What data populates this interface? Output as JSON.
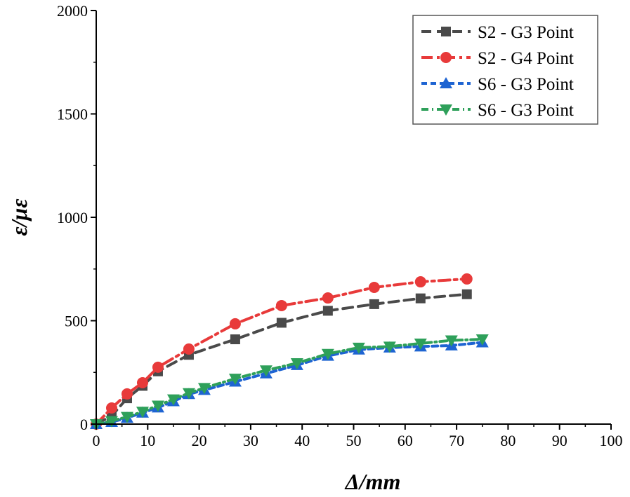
{
  "chart_data": {
    "type": "line",
    "title": "",
    "xlabel": "Δ/mm",
    "ylabel": "ε/με",
    "xlim": [
      0,
      100
    ],
    "ylim": [
      0,
      2000
    ],
    "xticks": [
      0,
      10,
      20,
      30,
      40,
      50,
      60,
      70,
      80,
      90,
      100
    ],
    "yticks": [
      0,
      500,
      1000,
      1500,
      2000
    ],
    "grid": false,
    "legend_position": "top-right",
    "series": [
      {
        "name": "S2 - G3 Point",
        "color": "#4a4a4a",
        "marker": "square",
        "dash": "14,8",
        "x": [
          0,
          3,
          6,
          9,
          12,
          18,
          27,
          36,
          45,
          54,
          63,
          72
        ],
        "y": [
          0,
          40,
          125,
          185,
          255,
          335,
          410,
          490,
          548,
          580,
          608,
          628
        ]
      },
      {
        "name": "S2 - G4 Point",
        "color": "#e83a3a",
        "marker": "circle",
        "dash": "16,6,4,6",
        "x": [
          0,
          3,
          6,
          9,
          12,
          18,
          27,
          36,
          45,
          54,
          63,
          72
        ],
        "y": [
          0,
          78,
          146,
          200,
          275,
          363,
          485,
          573,
          610,
          661,
          688,
          702
        ]
      },
      {
        "name": "S6 - G3 Point",
        "color": "#1e64d2",
        "marker": "triangle-up",
        "dash": "8,5",
        "x": [
          0,
          3,
          6,
          9,
          12,
          15,
          18,
          21,
          27,
          33,
          39,
          45,
          51,
          57,
          63,
          69,
          75
        ],
        "y": [
          0,
          10,
          30,
          55,
          80,
          110,
          145,
          165,
          205,
          245,
          285,
          330,
          360,
          370,
          375,
          380,
          395
        ]
      },
      {
        "name": "S6 - G3 Point",
        "color": "#2ea05a",
        "marker": "triangle-down",
        "dash": "10,5,2,5",
        "x": [
          0,
          3,
          6,
          9,
          12,
          15,
          18,
          21,
          27,
          33,
          39,
          45,
          51,
          57,
          63,
          69,
          75
        ],
        "y": [
          0,
          15,
          35,
          60,
          90,
          120,
          150,
          175,
          220,
          260,
          295,
          340,
          370,
          375,
          390,
          405,
          410
        ]
      }
    ]
  }
}
